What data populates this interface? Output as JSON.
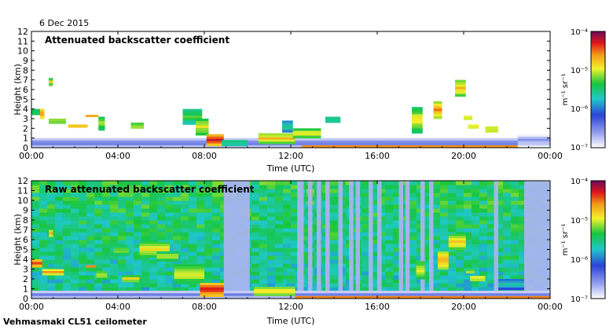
{
  "date_label": "6 Dec 2015",
  "footer_label": "Vehmasmaki CL51 ceilometer",
  "chart_data": [
    {
      "type": "heatmap",
      "title": "Attenuated backscatter coefficient",
      "xlabel": "Time (UTC)",
      "ylabel": "Height (km)",
      "xlim": [
        0,
        24
      ],
      "ylim": [
        0,
        12
      ],
      "x_ticks": [
        "00:00",
        "04:00",
        "08:00",
        "12:00",
        "16:00",
        "20:00",
        "00:00"
      ],
      "y_ticks": [
        "0",
        "1",
        "2",
        "3",
        "4",
        "5",
        "6",
        "7",
        "8",
        "9",
        "10",
        "11",
        "12"
      ],
      "colorbar": {
        "scale": "log",
        "min": 1e-07,
        "max": 0.0001,
        "unit": "m⁻¹ sr⁻¹",
        "ticks": [
          "10⁻⁴",
          "10⁻⁵",
          "10⁻⁶",
          "10⁻⁷"
        ]
      },
      "features": [
        {
          "t0": 0.0,
          "t1": 24.0,
          "h0": 0.0,
          "h1": 1.0,
          "level": 0.2
        },
        {
          "t0": 0.0,
          "t1": 0.4,
          "h0": 3.4,
          "h1": 4.0,
          "level": 0.6
        },
        {
          "t0": 0.4,
          "t1": 0.6,
          "h0": 3.0,
          "h1": 4.0,
          "level": 0.85
        },
        {
          "t0": 0.8,
          "t1": 1.0,
          "h0": 6.4,
          "h1": 7.2,
          "level": 0.7
        },
        {
          "t0": 0.8,
          "t1": 1.6,
          "h0": 2.5,
          "h1": 3.0,
          "level": 0.7
        },
        {
          "t0": 1.7,
          "t1": 2.6,
          "h0": 2.1,
          "h1": 2.4,
          "level": 0.75
        },
        {
          "t0": 2.5,
          "t1": 3.1,
          "h0": 3.2,
          "h1": 3.4,
          "level": 0.8
        },
        {
          "t0": 3.1,
          "t1": 3.4,
          "h0": 1.8,
          "h1": 3.2,
          "level": 0.65
        },
        {
          "t0": 4.6,
          "t1": 5.2,
          "h0": 2.0,
          "h1": 2.6,
          "level": 0.7
        },
        {
          "t0": 7.0,
          "t1": 7.9,
          "h0": 2.4,
          "h1": 4.0,
          "level": 0.6
        },
        {
          "t0": 7.6,
          "t1": 8.2,
          "h0": 1.3,
          "h1": 3.0,
          "level": 0.7
        },
        {
          "t0": 8.1,
          "t1": 8.9,
          "h0": 0.2,
          "h1": 1.4,
          "level": 0.9
        },
        {
          "t0": 8.8,
          "t1": 10.0,
          "h0": 0.2,
          "h1": 0.8,
          "level": 0.55
        },
        {
          "t0": 10.5,
          "t1": 12.2,
          "h0": 0.4,
          "h1": 1.5,
          "level": 0.75
        },
        {
          "t0": 11.6,
          "t1": 12.1,
          "h0": 1.6,
          "h1": 2.8,
          "level": 0.5
        },
        {
          "t0": 12.1,
          "t1": 13.4,
          "h0": 1.0,
          "h1": 2.0,
          "level": 0.7
        },
        {
          "t0": 13.6,
          "t1": 14.3,
          "h0": 2.6,
          "h1": 3.2,
          "level": 0.55
        },
        {
          "t0": 12.5,
          "t1": 22.5,
          "h0": 0.0,
          "h1": 0.25,
          "level": 0.8
        },
        {
          "t0": 17.6,
          "t1": 18.1,
          "h0": 1.5,
          "h1": 4.2,
          "level": 0.7
        },
        {
          "t0": 18.6,
          "t1": 19.0,
          "h0": 3.0,
          "h1": 4.8,
          "level": 0.8
        },
        {
          "t0": 19.6,
          "t1": 20.1,
          "h0": 5.3,
          "h1": 7.0,
          "level": 0.75
        },
        {
          "t0": 20.0,
          "t1": 20.4,
          "h0": 2.9,
          "h1": 3.3,
          "level": 0.75
        },
        {
          "t0": 20.2,
          "t1": 20.7,
          "h0": 2.0,
          "h1": 2.4,
          "level": 0.75
        },
        {
          "t0": 21.0,
          "t1": 21.6,
          "h0": 1.6,
          "h1": 2.2,
          "level": 0.75
        },
        {
          "t0": 22.5,
          "t1": 24.0,
          "h0": 0.0,
          "h1": 1.6,
          "level": 0.15
        }
      ]
    },
    {
      "type": "heatmap",
      "title": "Raw attenuated backscatter coefficient",
      "xlabel": "Time (UTC)",
      "ylabel": "Height (km)",
      "xlim": [
        0,
        24
      ],
      "ylim": [
        0,
        12
      ],
      "x_ticks": [
        "00:00",
        "04:00",
        "08:00",
        "12:00",
        "16:00",
        "20:00",
        "00:00"
      ],
      "y_ticks": [
        "0",
        "1",
        "2",
        "3",
        "4",
        "5",
        "6",
        "7",
        "8",
        "9",
        "10",
        "11",
        "12"
      ],
      "colorbar": {
        "scale": "log",
        "min": 1e-07,
        "max": 0.0001,
        "unit": "m⁻¹ sr⁻¹",
        "ticks": [
          "10⁻⁴",
          "10⁻⁵",
          "10⁻⁶",
          "10⁻⁷"
        ]
      },
      "background_level": 0.45,
      "clear_columns": [
        [
          8.9,
          10.1
        ],
        [
          12.3,
          12.6
        ],
        [
          12.8,
          13.0
        ],
        [
          13.2,
          13.4
        ],
        [
          13.6,
          13.8
        ],
        [
          14.2,
          14.4
        ],
        [
          14.7,
          14.9
        ],
        [
          15.0,
          15.2
        ],
        [
          15.6,
          15.8
        ],
        [
          16.0,
          16.2
        ],
        [
          17.0,
          17.2
        ],
        [
          17.3,
          17.5
        ],
        [
          18.0,
          18.2
        ],
        [
          18.4,
          18.6
        ],
        [
          21.4,
          21.6
        ],
        [
          22.8,
          24.0
        ]
      ],
      "features": [
        {
          "t0": 0.0,
          "t1": 24.0,
          "h0": 0.0,
          "h1": 0.8,
          "level": 0.2
        },
        {
          "t0": 0.0,
          "t1": 0.5,
          "h0": 3.2,
          "h1": 4.0,
          "level": 0.85
        },
        {
          "t0": 0.5,
          "t1": 1.5,
          "h0": 2.4,
          "h1": 3.0,
          "level": 0.8
        },
        {
          "t0": 0.8,
          "t1": 1.0,
          "h0": 6.3,
          "h1": 7.0,
          "level": 0.75
        },
        {
          "t0": 2.5,
          "t1": 3.0,
          "h0": 3.2,
          "h1": 3.4,
          "level": 0.8
        },
        {
          "t0": 3.0,
          "t1": 3.5,
          "h0": 1.9,
          "h1": 2.8,
          "level": 0.7
        },
        {
          "t0": 3.8,
          "t1": 4.5,
          "h0": 4.4,
          "h1": 5.4,
          "level": 0.65
        },
        {
          "t0": 4.2,
          "t1": 5.0,
          "h0": 1.7,
          "h1": 2.4,
          "level": 0.7
        },
        {
          "t0": 5.0,
          "t1": 6.4,
          "h0": 4.2,
          "h1": 5.8,
          "level": 0.7
        },
        {
          "t0": 5.8,
          "t1": 6.8,
          "h0": 3.8,
          "h1": 4.8,
          "level": 0.65
        },
        {
          "t0": 6.6,
          "t1": 8.0,
          "h0": 1.5,
          "h1": 3.5,
          "level": 0.7
        },
        {
          "t0": 7.8,
          "t1": 8.9,
          "h0": 0.2,
          "h1": 1.6,
          "level": 0.9
        },
        {
          "t0": 10.3,
          "t1": 12.2,
          "h0": 0.3,
          "h1": 1.2,
          "level": 0.75
        },
        {
          "t0": 11.8,
          "t1": 12.2,
          "h0": 1.3,
          "h1": 3.0,
          "level": 0.55
        },
        {
          "t0": 12.2,
          "t1": 24.0,
          "h0": 0.0,
          "h1": 0.25,
          "level": 0.8
        },
        {
          "t0": 17.8,
          "t1": 18.2,
          "h0": 2.0,
          "h1": 3.8,
          "level": 0.7
        },
        {
          "t0": 18.8,
          "t1": 19.3,
          "h0": 3.0,
          "h1": 4.8,
          "level": 0.8
        },
        {
          "t0": 19.3,
          "t1": 20.1,
          "h0": 5.0,
          "h1": 6.6,
          "level": 0.75
        },
        {
          "t0": 20.1,
          "t1": 20.5,
          "h0": 2.6,
          "h1": 3.0,
          "level": 0.7
        },
        {
          "t0": 20.3,
          "t1": 21.0,
          "h0": 1.8,
          "h1": 2.3,
          "level": 0.75
        },
        {
          "t0": 21.6,
          "t1": 22.8,
          "h0": 0.9,
          "h1": 2.0,
          "level": 0.45
        }
      ]
    }
  ]
}
